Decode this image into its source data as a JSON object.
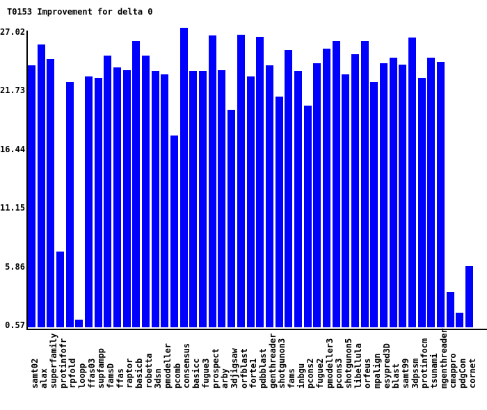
{
  "chart_data": {
    "type": "bar",
    "title": "T0153 Improvement for delta 0",
    "xlabel": "",
    "ylabel": "",
    "grid": false,
    "legend": "none",
    "bar_color": "#0000ff",
    "axis_color": "#000000",
    "text_color": "#000000",
    "background_color": "#ffffff",
    "ylim": [
      0.4,
      27.2
    ],
    "y_ticks": [
      27.02,
      21.73,
      16.44,
      11.15,
      5.86,
      0.57
    ],
    "y_tick_labels": [
      "27.02",
      "21.73",
      "16.44",
      "11.15",
      "5.86",
      "0.57"
    ],
    "categories": [
      "samt02",
      "alax",
      "superfamily",
      "protinfofr",
      "rpfold",
      "loopp",
      "ffas03",
      "supfampp",
      "famsD",
      "ffas",
      "raptor",
      "basicb",
      "robetta",
      "3dsn",
      "pmodeller",
      "pcomb",
      "consensus",
      "basicc",
      "fugue3",
      "prospect",
      "arby",
      "3djigsaw",
      "orfblast",
      "forte1",
      "pdbblast",
      "genthreader",
      "shotgunon3",
      "fams",
      "inbgu",
      "pcons2",
      "fugue2",
      "pmodeller3",
      "pcons3",
      "shotgunon5",
      "libellula",
      "orfeus",
      "mpalign",
      "esypred3D",
      "blast",
      "samt99",
      "3dpssm",
      "protinfocm",
      "tsunami",
      "mgenthreader",
      "cmappro",
      "pdgCon",
      "cornet"
    ],
    "values": [
      24.0,
      25.9,
      24.6,
      7.2,
      22.5,
      1.1,
      23.0,
      22.9,
      24.9,
      23.8,
      23.6,
      26.2,
      24.9,
      23.5,
      23.2,
      17.7,
      27.4,
      23.5,
      23.5,
      26.7,
      23.6,
      20.0,
      26.8,
      23.0,
      26.6,
      24.0,
      21.2,
      25.4,
      23.5,
      20.4,
      24.2,
      25.5,
      26.2,
      23.2,
      25.0,
      26.2,
      22.5,
      24.2,
      24.7,
      24.1,
      26.5,
      22.9,
      24.7,
      24.3,
      3.6,
      1.7,
      5.9
    ]
  }
}
